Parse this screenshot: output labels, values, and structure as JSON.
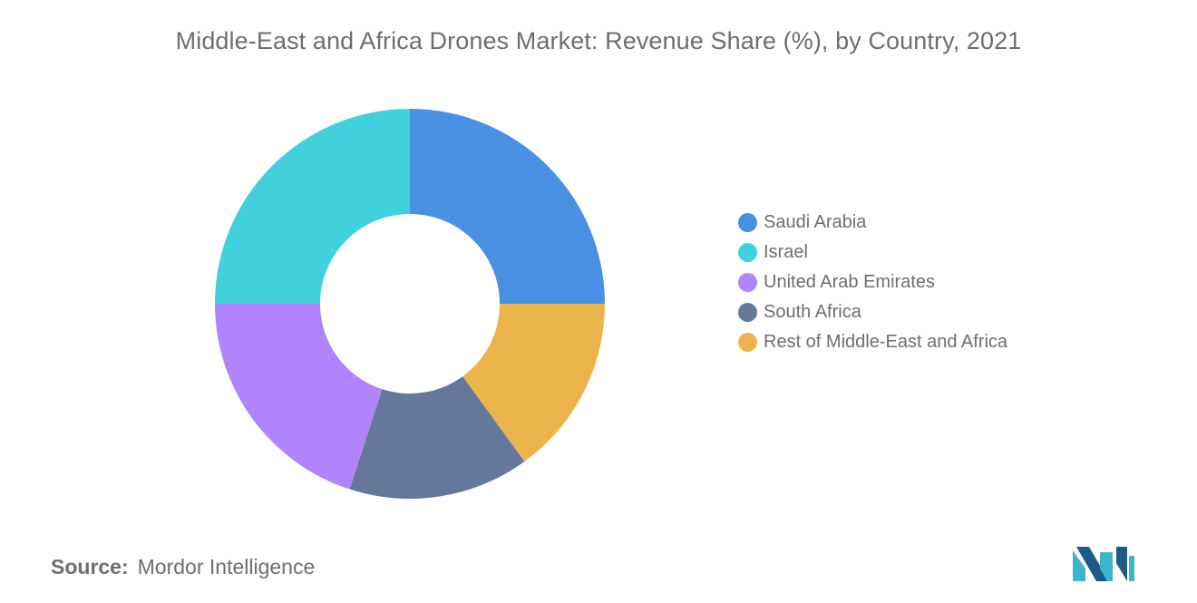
{
  "chart_data": {
    "type": "pie",
    "donut": true,
    "title": "Middle-East and Africa Drones Market: Revenue Share (%), by Country, 2021",
    "categories": [
      "Saudi Arabia",
      "Rest of Middle-East and Africa",
      "South Africa",
      "United Arab Emirates",
      "Israel"
    ],
    "values": [
      25,
      15,
      15,
      20,
      25
    ],
    "colors": [
      "#4a90e2",
      "#ebb44a",
      "#65789b",
      "#b084fb",
      "#41d1dc"
    ],
    "legend_placement": "right",
    "legend": [
      {
        "label": "Saudi Arabia",
        "color": "#4a90e2"
      },
      {
        "label": "Israel",
        "color": "#41d1dc"
      },
      {
        "label": "United Arab Emirates",
        "color": "#b084fb"
      },
      {
        "label": "South Africa",
        "color": "#65789b"
      },
      {
        "label": "Rest of Middle-East and Africa",
        "color": "#ebb44a"
      }
    ]
  },
  "source": {
    "label": "Source:",
    "value": "Mordor Intelligence"
  },
  "logo": {
    "icon": "mordor-intelligence-logo-icon"
  }
}
